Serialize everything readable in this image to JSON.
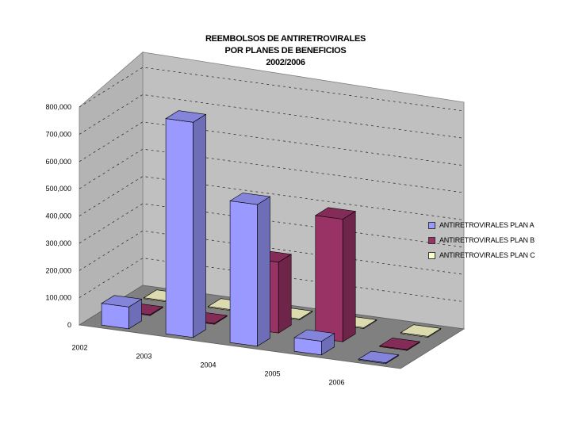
{
  "chart_data": {
    "type": "bar",
    "title_lines": [
      "REEMBOLSOS DE ANTIRETROVIRALES",
      "POR PLANES DE BENEFICIOS",
      "2002/2006"
    ],
    "categories": [
      "2002",
      "2003",
      "2004",
      "2005",
      "2006"
    ],
    "series": [
      {
        "name": "ANTIRETROVIRALES PLAN A",
        "color": "#9999ff",
        "values": [
          80000,
          790000,
          520000,
          50000,
          0
        ]
      },
      {
        "name": "ANTIRETROVIRALES PLAN B",
        "color": "#993366",
        "values": [
          0,
          0,
          260000,
          450000,
          0
        ]
      },
      {
        "name": "ANTIRETROVIRALES PLAN C",
        "color": "#ffffcc",
        "values": [
          0,
          0,
          0,
          0,
          0
        ]
      }
    ],
    "yticks": [
      "0",
      "100,000",
      "200,000",
      "300,000",
      "400,000",
      "500,000",
      "600,000",
      "700,000",
      "800,000"
    ],
    "ylim": [
      0,
      800000
    ],
    "grid": true,
    "legend_position": "right",
    "view": "3d-column"
  }
}
